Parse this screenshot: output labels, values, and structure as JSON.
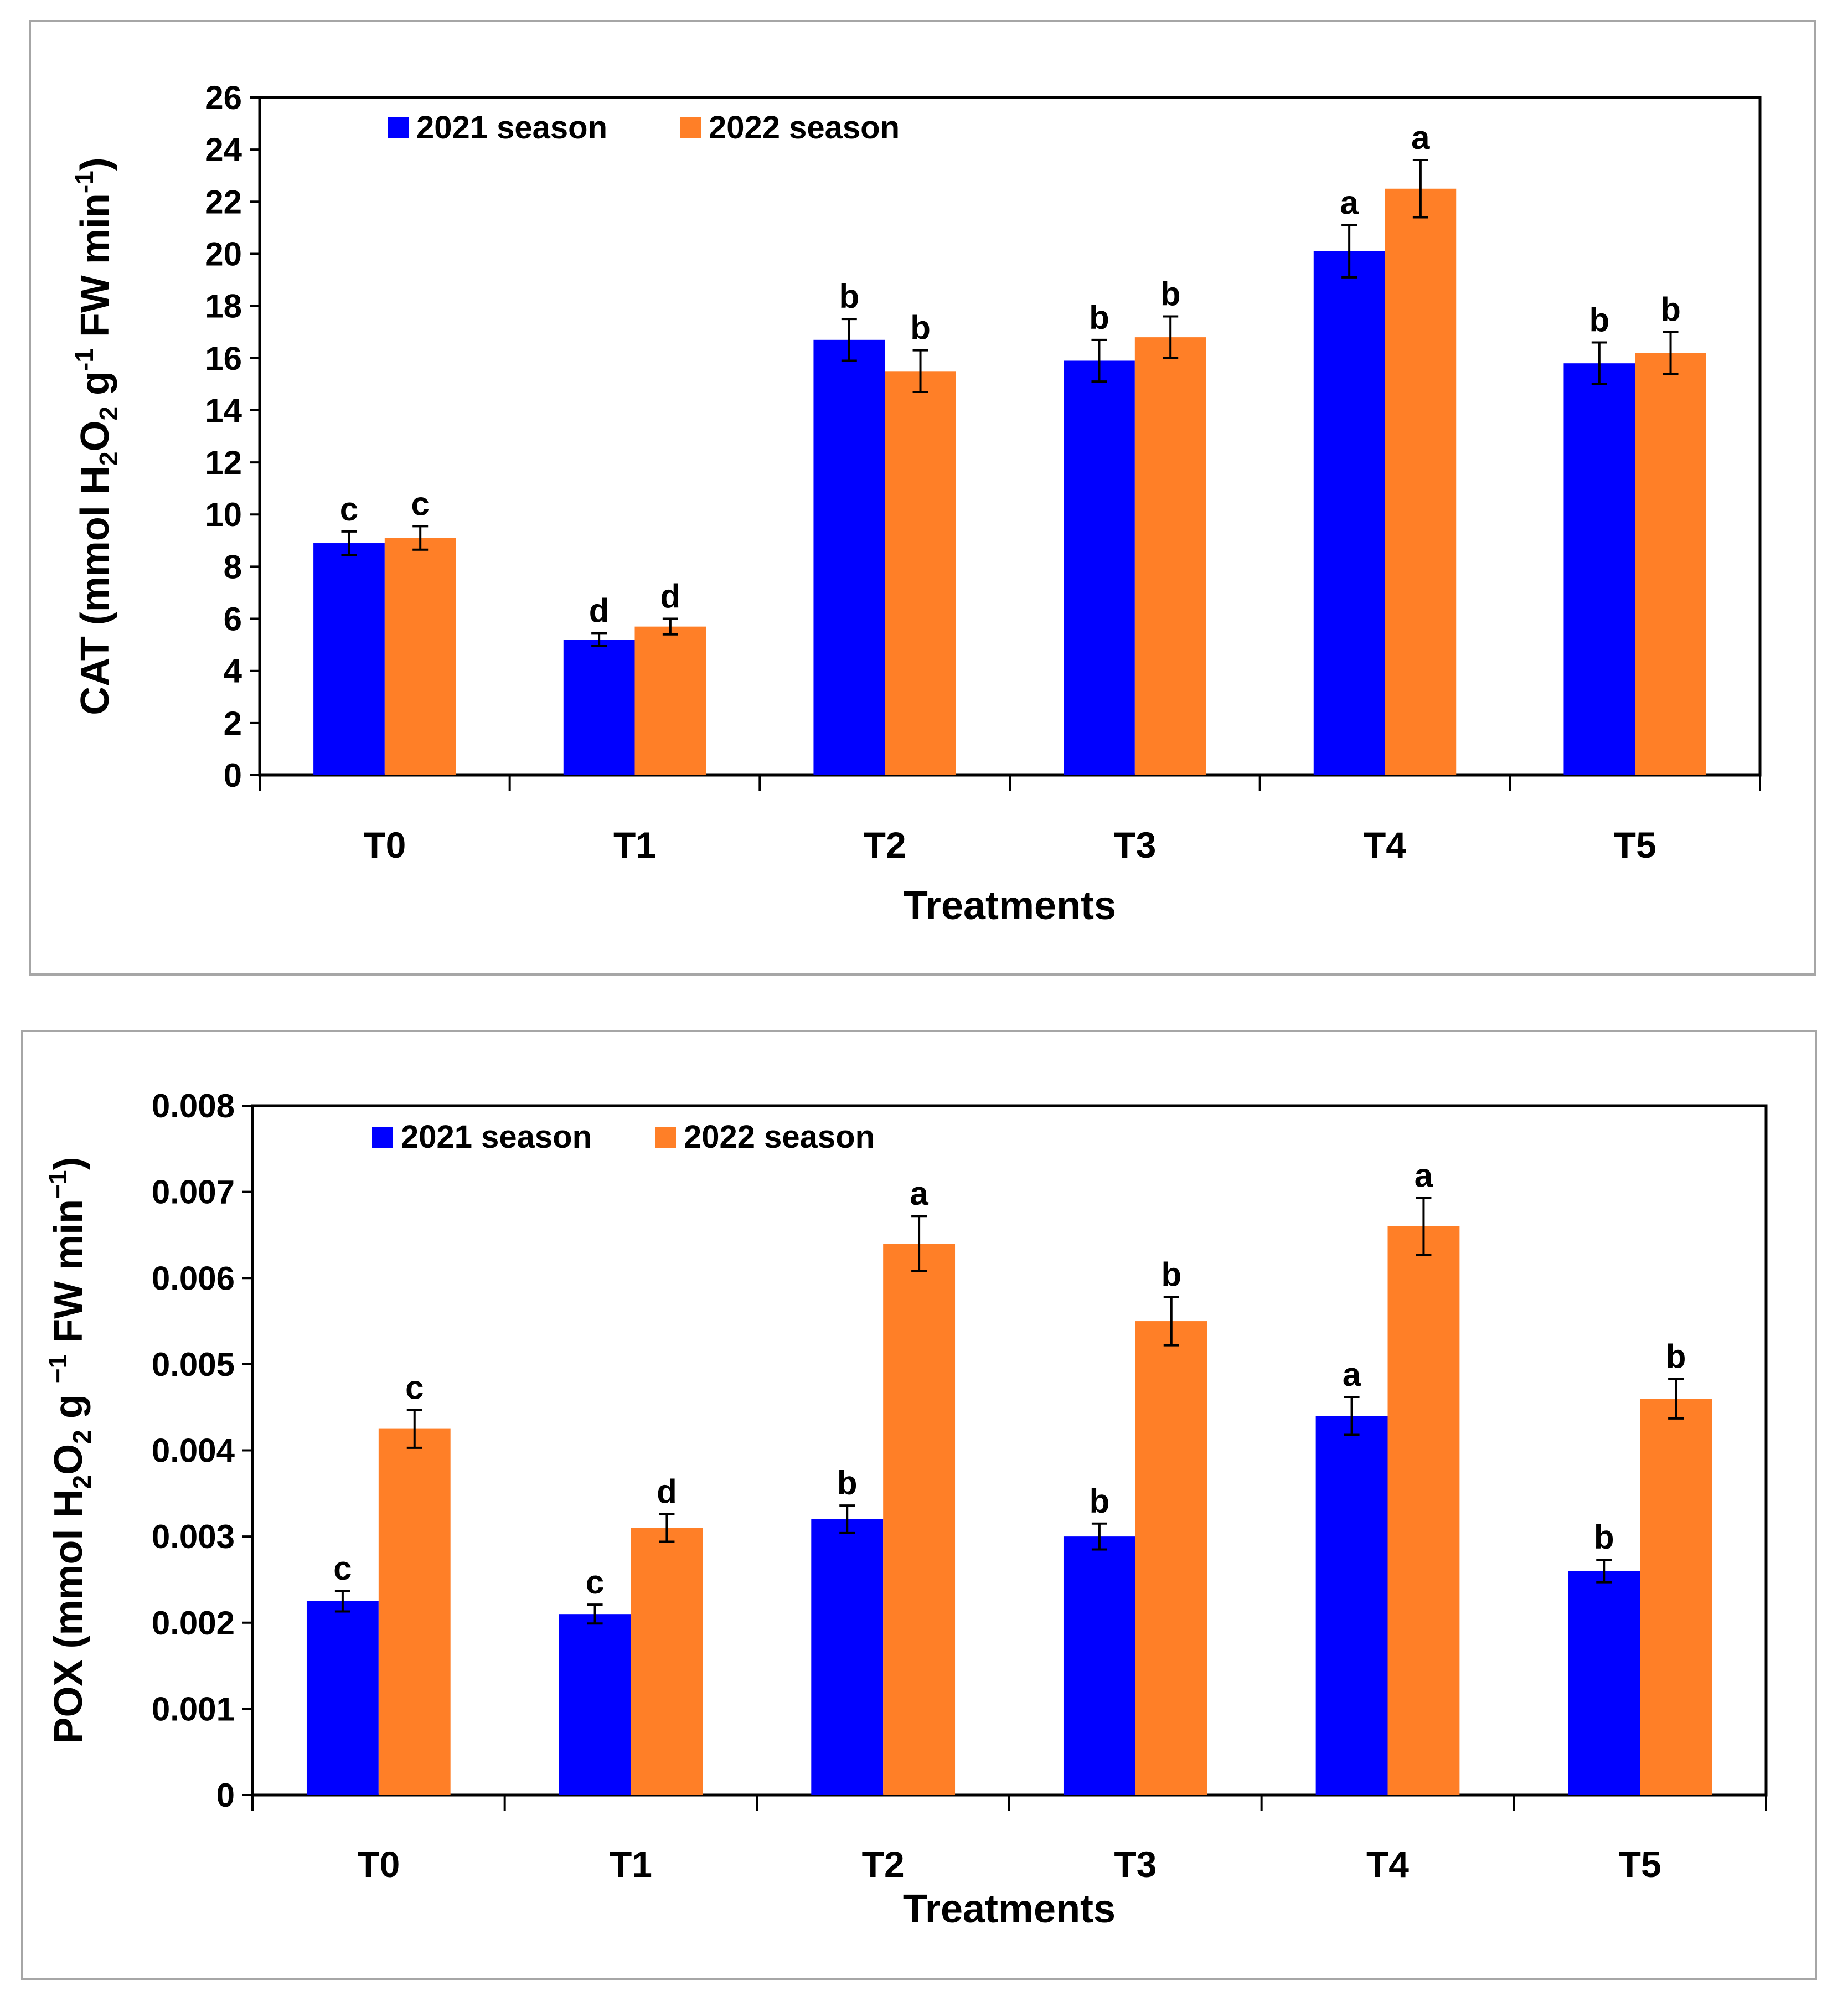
{
  "chart_data": [
    {
      "type": "bar",
      "categories": [
        "T0",
        "T1",
        "T2",
        "T3",
        "T4",
        "T5"
      ],
      "xlabel": "Treatments",
      "ylabel_parts": [
        "CAT (mmol H",
        "2",
        "O",
        "2",
        " g",
        "-1",
        " FW min",
        "-1",
        ")"
      ],
      "ylim": [
        0,
        26
      ],
      "yticks": [
        0,
        2,
        4,
        6,
        8,
        10,
        12,
        14,
        16,
        18,
        20,
        22,
        24,
        26
      ],
      "ytick_labels": [
        "0",
        "2",
        "4",
        "6",
        "8",
        "10",
        "12",
        "14",
        "16",
        "18",
        "20",
        "22",
        "24",
        "26"
      ],
      "legend_position": "top-left",
      "series": [
        {
          "name": "2021 season",
          "color": "#0000ff",
          "values": [
            8.9,
            5.2,
            16.7,
            15.9,
            20.1,
            15.8
          ],
          "errors": [
            0.45,
            0.25,
            0.8,
            0.8,
            1.0,
            0.8
          ],
          "letters": [
            "c",
            "d",
            "b",
            "b",
            "a",
            "b"
          ]
        },
        {
          "name": "2022 season",
          "color": "#ff7f27",
          "values": [
            9.1,
            5.7,
            15.5,
            16.8,
            22.5,
            16.2
          ],
          "errors": [
            0.45,
            0.3,
            0.8,
            0.8,
            1.1,
            0.8
          ],
          "letters": [
            "c",
            "d",
            "b",
            "b",
            "a",
            "b"
          ]
        }
      ]
    },
    {
      "type": "bar",
      "categories": [
        "T0",
        "T1",
        "T2",
        "T3",
        "T4",
        "T5"
      ],
      "xlabel": "Treatments",
      "ylabel_parts": [
        "POX (mmol H",
        "2",
        "O",
        "2",
        " g ",
        "−1",
        " FW min",
        "−1",
        ")"
      ],
      "ylim": [
        0,
        0.008
      ],
      "yticks": [
        0,
        0.001,
        0.002,
        0.003,
        0.004,
        0.005,
        0.006,
        0.007,
        0.008
      ],
      "ytick_labels": [
        "0",
        "0.001",
        "0.002",
        "0.003",
        "0.004",
        "0.005",
        "0.006",
        "0.007",
        "0.008"
      ],
      "legend_position": "top-left",
      "series": [
        {
          "name": "2021 season",
          "color": "#0000ff",
          "values": [
            0.00225,
            0.0021,
            0.0032,
            0.003,
            0.0044,
            0.0026
          ],
          "errors": [
            0.00012,
            0.00011,
            0.00016,
            0.00015,
            0.00022,
            0.00013
          ],
          "letters": [
            "c",
            "c",
            "b",
            "b",
            "a",
            "b"
          ]
        },
        {
          "name": "2022 season",
          "color": "#ff7f27",
          "values": [
            0.00425,
            0.0031,
            0.0064,
            0.0055,
            0.0066,
            0.0046
          ],
          "errors": [
            0.00022,
            0.00016,
            0.00032,
            0.00028,
            0.00033,
            0.00023
          ],
          "letters": [
            "c",
            "d",
            "a",
            "b",
            "a",
            "b"
          ]
        }
      ]
    }
  ]
}
